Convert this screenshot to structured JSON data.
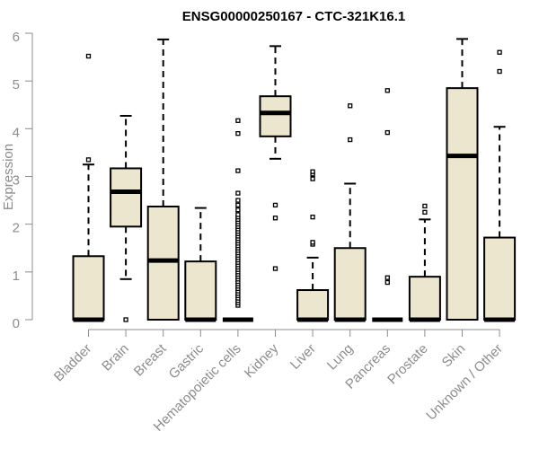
{
  "chart_data": {
    "type": "boxplot",
    "title": "ENSG00000250167 - CTC-321K16.1",
    "xlabel": "",
    "ylabel": "Expression",
    "ylim": [
      0,
      6
    ],
    "yticks": [
      "0",
      "1",
      "2",
      "3",
      "4",
      "5",
      "6"
    ],
    "grid": false,
    "colors": {
      "box_fill": "#ede6cf",
      "box_stroke": "#000000",
      "axis": "#8c8c8c",
      "outlier": "#000000"
    },
    "categories": [
      "Bladder",
      "Brain",
      "Breast",
      "Gastric",
      "Hematopoietic cells",
      "Kidney",
      "Liver",
      "Lung",
      "Pancreas",
      "Prostate",
      "Skin",
      "Unknown / Other"
    ],
    "boxes": [
      {
        "name": "Bladder",
        "whisker_low": 0,
        "q1": 0,
        "median": 0,
        "q3": 1.33,
        "whisker_high": 3.25,
        "outliers": [
          3.35,
          5.52
        ]
      },
      {
        "name": "Brain",
        "whisker_low": 0.85,
        "q1": 1.95,
        "median": 2.68,
        "q3": 3.17,
        "whisker_high": 4.27,
        "outliers": [
          0
        ]
      },
      {
        "name": "Breast",
        "whisker_low": 0,
        "q1": 0,
        "median": 1.24,
        "q3": 2.37,
        "whisker_high": 5.87,
        "outliers": []
      },
      {
        "name": "Gastric",
        "whisker_low": 0,
        "q1": 0,
        "median": 0,
        "q3": 1.22,
        "whisker_high": 2.34,
        "outliers": []
      },
      {
        "name": "Hematopoietic cells",
        "whisker_low": 0,
        "q1": 0,
        "median": 0,
        "q3": 0,
        "whisker_high": 0,
        "outliers": [
          0.3,
          0.35,
          0.4,
          0.45,
          0.5,
          0.55,
          0.6,
          0.65,
          0.7,
          0.75,
          0.8,
          0.85,
          0.9,
          0.95,
          1.0,
          1.05,
          1.1,
          1.15,
          1.2,
          1.25,
          1.3,
          1.35,
          1.4,
          1.45,
          1.5,
          1.55,
          1.6,
          1.65,
          1.7,
          1.75,
          1.8,
          1.85,
          1.9,
          1.95,
          2.0,
          2.05,
          2.1,
          2.15,
          2.2,
          2.3,
          2.4,
          2.5,
          2.65,
          3.12,
          3.9,
          4.17
        ]
      },
      {
        "name": "Kidney",
        "whisker_low": 3.37,
        "q1": 3.84,
        "median": 4.33,
        "q3": 4.68,
        "whisker_high": 5.73,
        "outliers": [
          1.07,
          2.13,
          2.4
        ]
      },
      {
        "name": "Liver",
        "whisker_low": 0,
        "q1": 0,
        "median": 0,
        "q3": 0.62,
        "whisker_high": 1.3,
        "outliers": [
          1.58,
          1.62,
          2.15,
          2.95,
          3.05,
          3.1
        ]
      },
      {
        "name": "Lung",
        "whisker_low": 0,
        "q1": 0,
        "median": 0,
        "q3": 1.5,
        "whisker_high": 2.85,
        "outliers": [
          3.77,
          4.48
        ]
      },
      {
        "name": "Pancreas",
        "whisker_low": 0,
        "q1": 0,
        "median": 0,
        "q3": 0,
        "whisker_high": 0,
        "outliers": [
          0.78,
          0.88,
          3.92,
          4.8
        ]
      },
      {
        "name": "Prostate",
        "whisker_low": 0,
        "q1": 0,
        "median": 0,
        "q3": 0.9,
        "whisker_high": 2.1,
        "outliers": [
          2.25,
          2.38
        ]
      },
      {
        "name": "Skin",
        "whisker_low": 0,
        "q1": 0,
        "median": 3.43,
        "q3": 4.85,
        "whisker_high": 5.88,
        "outliers": []
      },
      {
        "name": "Unknown / Other",
        "whisker_low": 0,
        "q1": 0,
        "median": 0,
        "q3": 1.72,
        "whisker_high": 4.04,
        "outliers": [
          5.2,
          5.6
        ]
      }
    ]
  }
}
